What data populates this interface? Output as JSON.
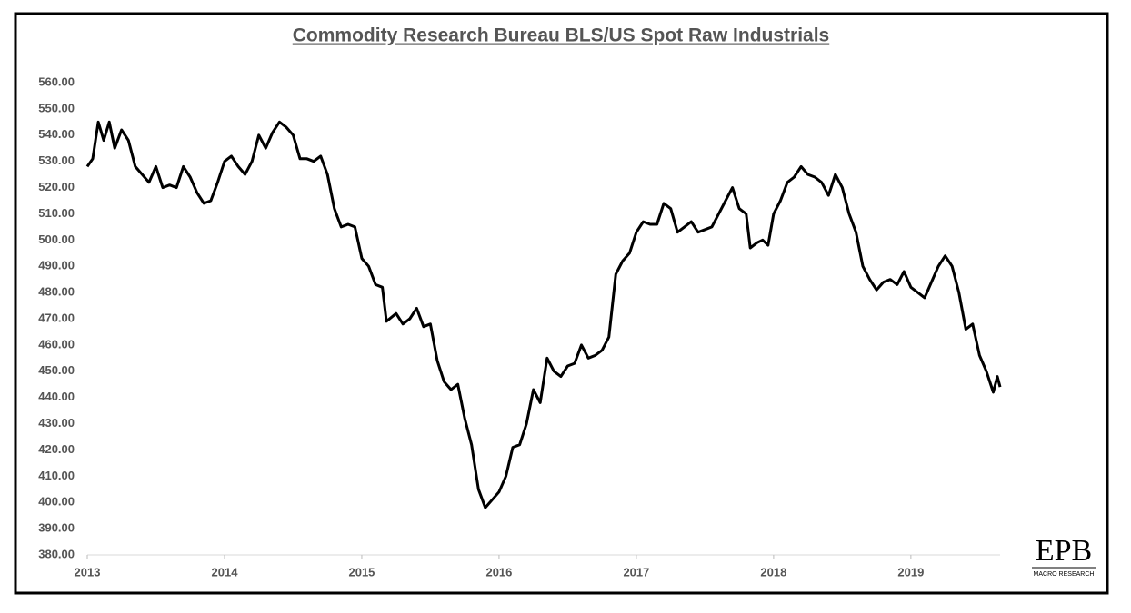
{
  "chart_data": {
    "type": "line",
    "title": "Commodity Research Bureau BLS/US Spot Raw Industrials",
    "logo": {
      "name": "EPB",
      "tagline": "MACRO RESEARCH"
    },
    "xlim": [
      2013,
      2019.65
    ],
    "xticks": [
      2013,
      2014,
      2015,
      2016,
      2017,
      2018,
      2019
    ],
    "ylim": [
      380,
      560
    ],
    "yticks": [
      {
        "value": 380,
        "label": "380.00"
      },
      {
        "value": 390,
        "label": "390.00"
      },
      {
        "value": 400,
        "label": "400.00"
      },
      {
        "value": 410,
        "label": "410.00"
      },
      {
        "value": 420,
        "label": "420.00"
      },
      {
        "value": 430,
        "label": "430.00"
      },
      {
        "value": 440,
        "label": "440.00"
      },
      {
        "value": 450,
        "label": "450.00"
      },
      {
        "value": 460,
        "label": "460.00"
      },
      {
        "value": 470,
        "label": "470.00"
      },
      {
        "value": 480,
        "label": "480.00"
      },
      {
        "value": 490,
        "label": "490.00"
      },
      {
        "value": 500,
        "label": "500.00"
      },
      {
        "value": 510,
        "label": "510.00"
      },
      {
        "value": 520,
        "label": "520.00"
      },
      {
        "value": 530,
        "label": "530.00"
      },
      {
        "value": 540,
        "label": "540.00"
      },
      {
        "value": 550,
        "label": "550.00"
      },
      {
        "value": 560,
        "label": "560.00"
      }
    ],
    "grid": false,
    "x": [
      2013.0,
      2013.04,
      2013.08,
      2013.12,
      2013.16,
      2013.2,
      2013.25,
      2013.3,
      2013.35,
      2013.4,
      2013.45,
      2013.5,
      2013.55,
      2013.6,
      2013.65,
      2013.7,
      2013.75,
      2013.8,
      2013.85,
      2013.9,
      2013.95,
      2014.0,
      2014.05,
      2014.1,
      2014.15,
      2014.2,
      2014.25,
      2014.3,
      2014.35,
      2014.4,
      2014.45,
      2014.5,
      2014.55,
      2014.6,
      2014.65,
      2014.7,
      2014.75,
      2014.8,
      2014.85,
      2014.9,
      2014.95,
      2015.0,
      2015.05,
      2015.1,
      2015.15,
      2015.18,
      2015.25,
      2015.3,
      2015.35,
      2015.4,
      2015.45,
      2015.5,
      2015.55,
      2015.6,
      2015.65,
      2015.7,
      2015.75,
      2015.8,
      2015.85,
      2015.9,
      2015.95,
      2016.0,
      2016.05,
      2016.1,
      2016.15,
      2016.2,
      2016.25,
      2016.3,
      2016.35,
      2016.4,
      2016.45,
      2016.5,
      2016.55,
      2016.6,
      2016.65,
      2016.7,
      2016.75,
      2016.8,
      2016.85,
      2016.9,
      2016.95,
      2017.0,
      2017.05,
      2017.1,
      2017.15,
      2017.2,
      2017.25,
      2017.3,
      2017.35,
      2017.4,
      2017.45,
      2017.5,
      2017.55,
      2017.6,
      2017.65,
      2017.7,
      2017.75,
      2017.8,
      2017.83,
      2017.88,
      2017.92,
      2017.96,
      2018.0,
      2018.05,
      2018.1,
      2018.15,
      2018.2,
      2018.25,
      2018.3,
      2018.35,
      2018.4,
      2018.45,
      2018.5,
      2018.55,
      2018.6,
      2018.65,
      2018.7,
      2018.75,
      2018.8,
      2018.85,
      2018.9,
      2018.95,
      2019.0,
      2019.05,
      2019.1,
      2019.15,
      2019.2,
      2019.25,
      2019.3,
      2019.35,
      2019.4,
      2019.45,
      2019.5,
      2019.55,
      2019.6,
      2019.63,
      2019.65
    ],
    "series": [
      {
        "name": "CRB BLS/US Spot Raw Industrials",
        "color": "#000000",
        "values": [
          528,
          531,
          545,
          538,
          545,
          535,
          542,
          538,
          528,
          525,
          522,
          528,
          520,
          521,
          520,
          528,
          524,
          518,
          514,
          515,
          522,
          530,
          532,
          528,
          525,
          530,
          540,
          535,
          541,
          545,
          543,
          540,
          531,
          531,
          530,
          532,
          525,
          512,
          505,
          506,
          505,
          493,
          490,
          483,
          482,
          469,
          472,
          468,
          470,
          474,
          467,
          468,
          454,
          446,
          443,
          445,
          432,
          422,
          405,
          398,
          401,
          404,
          410,
          421,
          422,
          430,
          443,
          438,
          455,
          450,
          448,
          452,
          453,
          460,
          455,
          456,
          458,
          463,
          487,
          492,
          495,
          503,
          507,
          506,
          506,
          514,
          512,
          503,
          505,
          507,
          503,
          504,
          505,
          510,
          515,
          520,
          512,
          510,
          497,
          499,
          500,
          498,
          510,
          515,
          522,
          524,
          528,
          525,
          524,
          522,
          517,
          525,
          520,
          510,
          503,
          490,
          485,
          481,
          484,
          485,
          483,
          488,
          482,
          480,
          478,
          484,
          490,
          494,
          490,
          480,
          466,
          468,
          456,
          450,
          442,
          448,
          444
        ]
      }
    ]
  }
}
